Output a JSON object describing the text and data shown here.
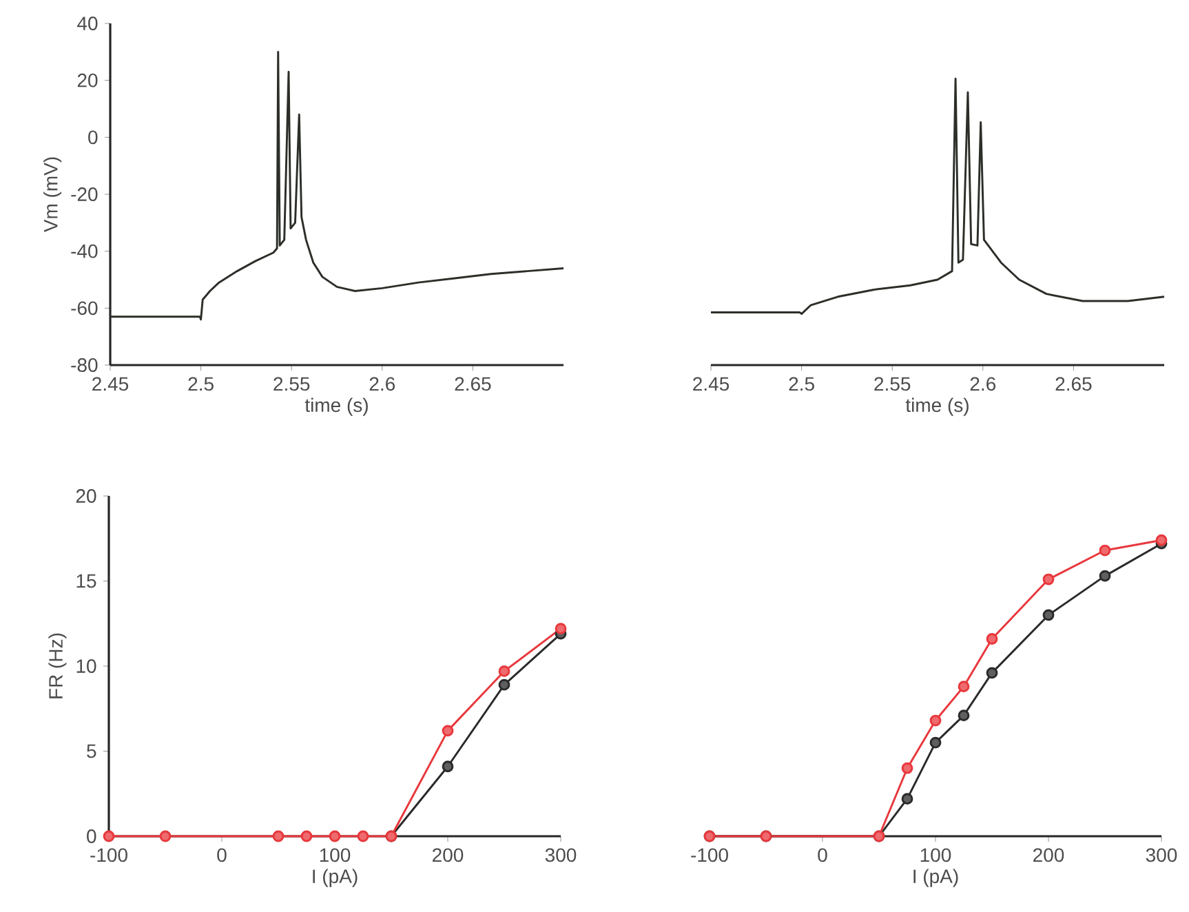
{
  "chart_data": [
    {
      "type": "line",
      "ylabel": "Vm (mV)",
      "xlabel": "time (s)",
      "xlim": [
        2.45,
        2.7
      ],
      "ylim": [
        -80,
        40
      ],
      "xticks": [
        2.45,
        2.5,
        2.55,
        2.6,
        2.65
      ],
      "yticks": [
        -80,
        -60,
        -40,
        -20,
        0,
        20,
        40
      ],
      "marker": "none",
      "x": [
        2.45,
        2.4995,
        2.5,
        2.501,
        2.505,
        2.51,
        2.52,
        2.53,
        2.54,
        2.542,
        2.5426,
        2.5435,
        2.546,
        2.5484,
        2.5495,
        2.552,
        2.5542,
        2.5555,
        2.558,
        2.562,
        2.567,
        2.575,
        2.585,
        2.6,
        2.62,
        2.64,
        2.66,
        2.68,
        2.7
      ],
      "series": [
        {
          "color": "#2b2f28",
          "values": [
            -63,
            -63,
            -64,
            -57,
            -54,
            -51,
            -47,
            -43.5,
            -40.5,
            -39,
            30,
            -38,
            -36,
            23,
            -32,
            -30,
            8,
            -28,
            -36,
            -44,
            -49,
            -52.5,
            -54,
            -53,
            -51,
            -49.5,
            -48,
            -47,
            -46
          ]
        }
      ]
    },
    {
      "type": "line",
      "xlabel": "time (s)",
      "xlim": [
        2.45,
        2.7
      ],
      "ylim": [
        -80,
        40
      ],
      "xticks": [
        2.45,
        2.5,
        2.55,
        2.6,
        2.65
      ],
      "tick_labels": "x",
      "marker": "none",
      "x": [
        2.45,
        2.499,
        2.5,
        2.505,
        2.52,
        2.54,
        2.56,
        2.575,
        2.583,
        2.5849,
        2.5865,
        2.589,
        2.5917,
        2.5935,
        2.597,
        2.5988,
        2.6006,
        2.61,
        2.62,
        2.635,
        2.655,
        2.68,
        2.7
      ],
      "series": [
        {
          "color": "#2b2f28",
          "values": [
            -61.5,
            -61.5,
            -62,
            -59,
            -56,
            -53.5,
            -52,
            -50,
            -47,
            20.6,
            -44,
            -43,
            15.8,
            -37.5,
            -38,
            5.3,
            -36,
            -44,
            -50,
            -55,
            -57.5,
            -57.5,
            -56
          ]
        }
      ]
    },
    {
      "type": "line",
      "ylabel": "FR (Hz)",
      "xlabel": "I (pA)",
      "xlim": [
        -100,
        300
      ],
      "ylim": [
        0,
        20
      ],
      "xticks": [
        -100,
        0,
        100,
        200,
        300
      ],
      "yticks": [
        0,
        5,
        10,
        15,
        20
      ],
      "marker": "circle",
      "x": [
        -100,
        -50,
        50,
        75,
        100,
        125,
        150,
        200,
        250,
        300
      ],
      "series": [
        {
          "color": "#2a2a2a",
          "values": [
            null,
            null,
            null,
            null,
            null,
            null,
            0,
            4.1,
            8.9,
            11.9
          ]
        },
        {
          "color": "#e8383d",
          "values": [
            0,
            0,
            0,
            0,
            0,
            0,
            0,
            6.2,
            9.7,
            12.2
          ]
        }
      ]
    },
    {
      "type": "line",
      "xlabel": "I (pA)",
      "xlim": [
        -100,
        300
      ],
      "ylim": [
        0,
        20
      ],
      "xticks": [
        -100,
        0,
        100,
        200,
        300
      ],
      "tick_labels": "x",
      "marker": "circle",
      "x": [
        -100,
        -50,
        50,
        75,
        100,
        125,
        150,
        200,
        250,
        300
      ],
      "series": [
        {
          "color": "#2a2a2a",
          "values": [
            0,
            0,
            0,
            2.2,
            5.5,
            7.1,
            9.6,
            13.0,
            15.3,
            17.2
          ]
        },
        {
          "color": "#e8383d",
          "values": [
            0,
            0,
            0,
            4.0,
            6.8,
            8.8,
            11.6,
            15.1,
            16.8,
            17.4
          ]
        }
      ]
    }
  ]
}
